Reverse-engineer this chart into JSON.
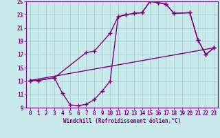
{
  "xlabel": "Windchill (Refroidissement éolien,°C)",
  "line_color": "#800080",
  "bg_color": "#c8eaea",
  "grid_color": "#aad0d0",
  "xlim": [
    -0.5,
    23.5
  ],
  "ylim": [
    9,
    25
  ],
  "xticks": [
    0,
    1,
    2,
    3,
    4,
    5,
    6,
    7,
    8,
    9,
    10,
    11,
    12,
    13,
    14,
    15,
    16,
    17,
    18,
    19,
    20,
    21,
    22,
    23
  ],
  "yticks": [
    9,
    11,
    13,
    15,
    17,
    19,
    21,
    23,
    25
  ],
  "curve1_x": [
    0,
    1,
    3,
    4,
    5,
    6,
    7,
    8,
    9,
    10,
    11,
    12,
    13,
    14,
    15,
    16,
    17,
    18,
    20,
    21,
    22,
    23
  ],
  "curve1_y": [
    13.1,
    13.1,
    13.5,
    11.2,
    9.4,
    9.3,
    9.5,
    10.2,
    11.5,
    13.0,
    22.7,
    23.0,
    23.2,
    23.3,
    25.0,
    24.8,
    24.6,
    23.2,
    23.3,
    19.2,
    17.0,
    18.0
  ],
  "curve2_x": [
    0,
    1,
    3,
    7,
    8,
    10,
    11,
    12,
    13,
    14,
    15,
    16,
    17,
    18,
    20,
    21,
    22,
    23
  ],
  "curve2_y": [
    13.1,
    13.1,
    13.5,
    17.3,
    17.5,
    20.2,
    22.7,
    23.0,
    23.2,
    23.3,
    25.0,
    24.8,
    24.6,
    23.2,
    23.3,
    19.2,
    17.0,
    18.0
  ],
  "curve3_x": [
    0,
    23
  ],
  "curve3_y": [
    13.1,
    18.0
  ],
  "marker": "+",
  "marker_size": 4,
  "linewidth": 1.0,
  "tick_fontsize": 5.5,
  "xlabel_fontsize": 5.5
}
